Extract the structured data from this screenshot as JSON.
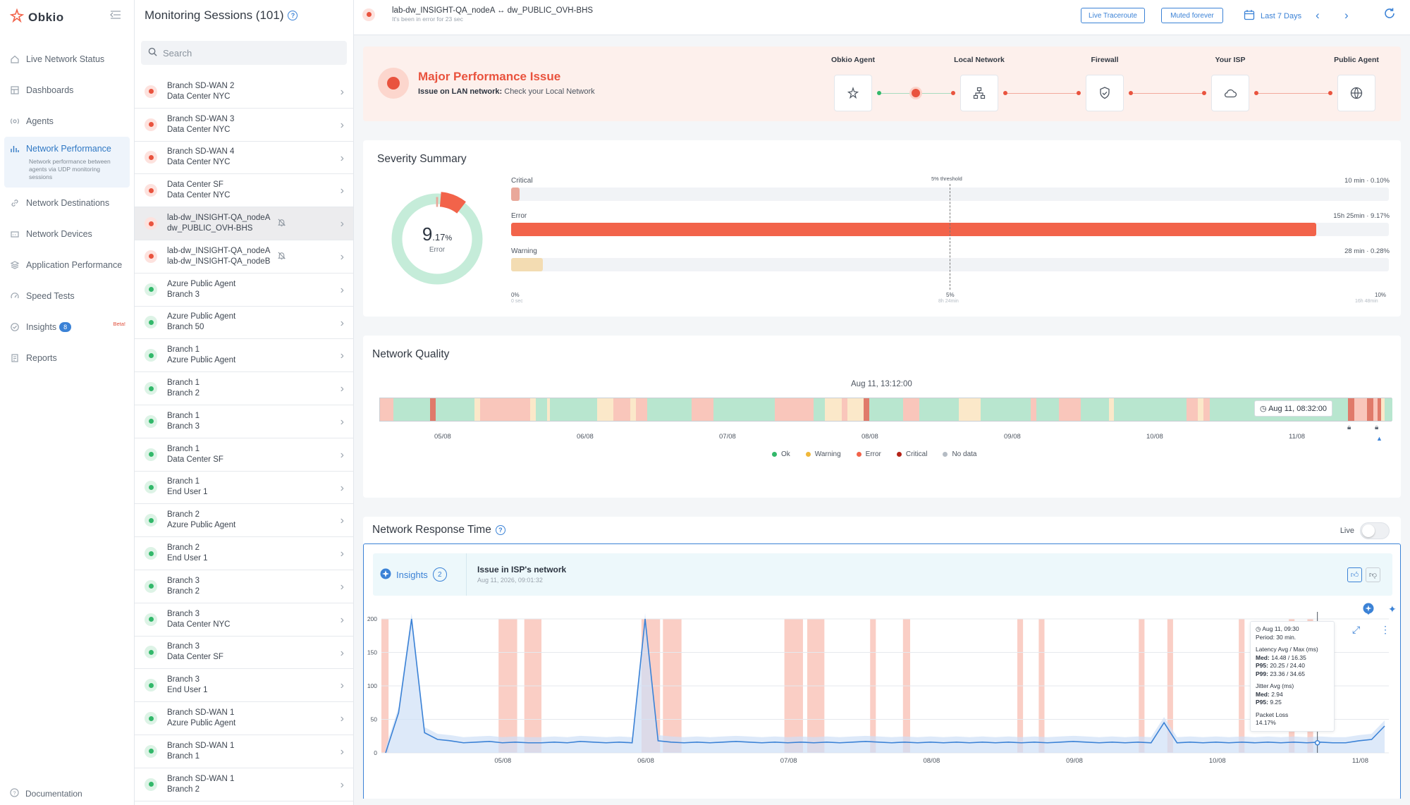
{
  "app": {
    "name": "Obkio"
  },
  "nav": {
    "items": [
      {
        "label": "Live Network Status",
        "icon": "home-icon"
      },
      {
        "label": "Dashboards",
        "icon": "dashboard-icon"
      },
      {
        "label": "Agents",
        "icon": "agent-icon"
      },
      {
        "label": "Network Performance",
        "icon": "bar-chart-icon",
        "description": "Network performance between agents via UDP monitoring sessions"
      },
      {
        "label": "Network Destinations",
        "icon": "link-icon"
      },
      {
        "label": "Network Devices",
        "icon": "device-icon"
      },
      {
        "label": "Application Performance",
        "icon": "layers-icon"
      },
      {
        "label": "Speed Tests",
        "icon": "gauge-icon"
      },
      {
        "label": "Insights",
        "icon": "check-circle-icon",
        "badge": "8",
        "tag": "Beta!"
      },
      {
        "label": "Reports",
        "icon": "report-icon"
      }
    ],
    "documentation": "Documentation"
  },
  "sessions": {
    "title": "Monitoring Sessions (101)",
    "search_placeholder": "Search",
    "items": [
      {
        "a": "Branch SD-WAN 2",
        "b": "Data Center NYC",
        "status": "red"
      },
      {
        "a": "Branch SD-WAN 3",
        "b": "Data Center NYC",
        "status": "red"
      },
      {
        "a": "Branch SD-WAN 4",
        "b": "Data Center NYC",
        "status": "red"
      },
      {
        "a": "Data Center SF",
        "b": "Data Center NYC",
        "status": "red"
      },
      {
        "a": "lab-dw_INSIGHT-QA_nodeA",
        "b": "dw_PUBLIC_OVH-BHS",
        "status": "red",
        "muted": true,
        "selected": true
      },
      {
        "a": "lab-dw_INSIGHT-QA_nodeA",
        "b": "lab-dw_INSIGHT-QA_nodeB",
        "status": "red",
        "muted": true
      },
      {
        "a": "Azure Public Agent",
        "b": "Branch 3",
        "status": "green"
      },
      {
        "a": "Azure Public Agent",
        "b": "Branch 50",
        "status": "green"
      },
      {
        "a": "Branch 1",
        "b": "Azure Public Agent",
        "status": "green"
      },
      {
        "a": "Branch 1",
        "b": "Branch 2",
        "status": "green"
      },
      {
        "a": "Branch 1",
        "b": "Branch 3",
        "status": "green"
      },
      {
        "a": "Branch 1",
        "b": "Data Center SF",
        "status": "green"
      },
      {
        "a": "Branch 1",
        "b": "End User 1",
        "status": "green"
      },
      {
        "a": "Branch 2",
        "b": "Azure Public Agent",
        "status": "green"
      },
      {
        "a": "Branch 2",
        "b": "End User 1",
        "status": "green"
      },
      {
        "a": "Branch 3",
        "b": "Branch 2",
        "status": "green"
      },
      {
        "a": "Branch 3",
        "b": "Data Center NYC",
        "status": "green"
      },
      {
        "a": "Branch 3",
        "b": "Data Center SF",
        "status": "green"
      },
      {
        "a": "Branch 3",
        "b": "End User 1",
        "status": "green"
      },
      {
        "a": "Branch SD-WAN 1",
        "b": "Azure Public Agent",
        "status": "green"
      },
      {
        "a": "Branch SD-WAN 1",
        "b": "Branch 1",
        "status": "green"
      },
      {
        "a": "Branch SD-WAN 1",
        "b": "Branch 2",
        "status": "green"
      }
    ]
  },
  "topbar": {
    "session_title": "lab-dw_INSIGHT-QA_nodeA ↔ dw_PUBLIC_OVH-BHS",
    "session_status": "It's been in error for 23 sec",
    "live_traceroute": "Live Traceroute",
    "muted": "Muted forever",
    "range": "Last 7 Days"
  },
  "issue": {
    "title": "Major Performance Issue",
    "sub_bold": "Issue on LAN network:",
    "sub_text": " Check your Local Network",
    "path": [
      {
        "label": "Obkio Agent",
        "icon": "obkio-agent-icon"
      },
      {
        "label": "Local Network",
        "icon": "network-tree-icon"
      },
      {
        "label": "Firewall",
        "icon": "shield-icon"
      },
      {
        "label": "Your ISP",
        "icon": "cloud-icon"
      },
      {
        "label": "Public Agent",
        "icon": "globe-icon"
      }
    ]
  },
  "severity": {
    "title": "Severity Summary",
    "donut_value": "9",
    "donut_decimal": ".17",
    "donut_unit": "%",
    "donut_label": "Error",
    "threshold_label": "5% threshold",
    "rows": [
      {
        "label": "Critical",
        "right": "10 min · 0.10%",
        "pct": 0.1,
        "color": "#e9a89a"
      },
      {
        "label": "Error",
        "right": "15h 25min · 9.17%",
        "pct": 9.17,
        "color": "#f2634a"
      },
      {
        "label": "Warning",
        "right": "28 min · 0.28%",
        "pct": 0.28,
        "color": "#f3dcb2"
      }
    ],
    "axis": [
      {
        "pct": "0%",
        "sub": "0 sec"
      },
      {
        "pct": "5%",
        "sub": "8h 24min"
      },
      {
        "pct": "10%",
        "sub": "16h 48min"
      }
    ]
  },
  "quality": {
    "title": "Network Quality",
    "hover_time": "Aug 11, 13:12:00",
    "tooltip_time": "Aug 11, 08:32:00",
    "ticks": [
      "05/08",
      "06/08",
      "07/08",
      "08/08",
      "09/08",
      "10/08",
      "11/08"
    ],
    "legend": [
      {
        "label": "Ok",
        "color": "#32b86a"
      },
      {
        "label": "Warning",
        "color": "#f0b83a"
      },
      {
        "label": "Error",
        "color": "#f2634a"
      },
      {
        "label": "Critical",
        "color": "#b42318"
      },
      {
        "label": "No data",
        "color": "#b5bcc4"
      }
    ],
    "colors": {
      "ok": "#b8e6cf",
      "warning": "#fbe8c9",
      "error": "#f9c6bb",
      "critical": "#e07a6a",
      "nodata": "#e6e9ed"
    }
  },
  "response": {
    "title": "Network Response Time",
    "live_label": "Live",
    "insights_label": "Insights",
    "insights_count": "2",
    "insight_title": "Issue in ISP's network",
    "insight_date": "Aug 11, 2026, 09:01:32",
    "tooltip": {
      "time": "Aug 11, 09:30",
      "period": "Period: 30 min.",
      "lat_head": "Latency Avg / Max (ms)",
      "med_k": "Med:",
      "med_v": " 14.48 / 16.35",
      "p95_k": "P95:",
      "p95_v": " 20.25 / 24.40",
      "p99_k": "P99:",
      "p99_v": " 23.36 / 34.65",
      "jit_head": "Jitter Avg (ms)",
      "jmed_k": "Med:",
      "jmed_v": " 2.94",
      "jp95_k": "P95:",
      "jp95_v": " 9.25",
      "loss_head": "Packet Loss",
      "loss_v": "14.17%"
    }
  },
  "chart_data": {
    "type": "line",
    "title": "Network Response Time",
    "ylabel": "",
    "ylim": [
      0,
      200
    ],
    "yticks": [
      0,
      50,
      100,
      150,
      200
    ],
    "x_ticks": [
      "05/08",
      "06/08",
      "07/08",
      "08/08",
      "09/08",
      "10/08",
      "11/08"
    ],
    "series": [
      {
        "values": [
          0,
          60,
          200,
          30,
          20,
          18,
          15,
          16,
          17,
          15,
          16,
          15,
          15,
          16,
          15,
          17,
          16,
          15,
          16,
          15,
          200,
          18,
          16,
          15,
          16,
          15,
          16,
          17,
          16,
          15,
          16,
          15,
          16,
          15,
          16,
          15,
          16,
          17,
          16,
          15,
          16,
          15,
          16,
          15,
          16,
          15,
          16,
          15,
          16,
          15,
          16,
          15,
          16,
          17,
          16,
          15,
          16,
          15,
          16,
          15,
          45,
          15,
          16,
          15,
          16,
          15,
          16,
          15,
          16,
          15,
          16,
          15,
          16,
          15,
          15,
          18,
          20,
          40
        ]
      }
    ],
    "error_bands_days": [
      [
        0.0,
        0.05
      ],
      [
        0.82,
        0.95
      ],
      [
        1.0,
        1.12
      ],
      [
        1.82,
        1.95
      ],
      [
        1.97,
        2.1
      ],
      [
        2.82,
        2.95
      ],
      [
        2.98,
        3.1
      ],
      [
        3.42,
        3.46
      ],
      [
        3.65,
        3.7
      ],
      [
        4.45,
        4.49
      ],
      [
        4.6,
        4.64
      ],
      [
        5.3,
        5.34
      ],
      [
        5.5,
        5.54
      ],
      [
        6.0,
        6.04
      ],
      [
        6.35,
        6.39
      ],
      [
        6.48,
        6.52
      ]
    ]
  }
}
